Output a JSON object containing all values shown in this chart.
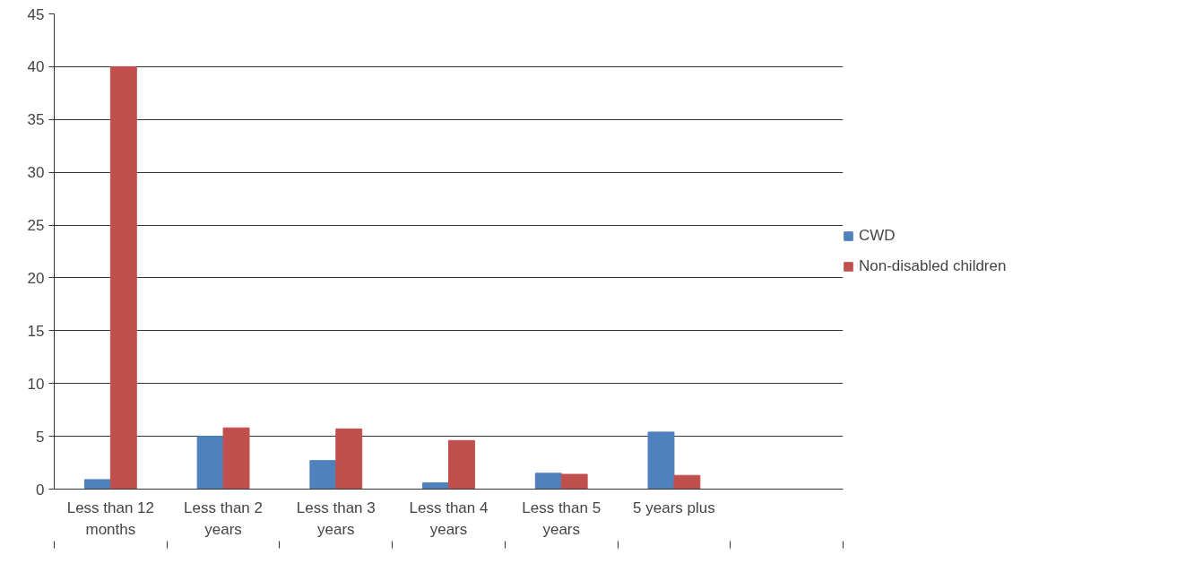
{
  "chart_data": {
    "type": "bar",
    "categories": [
      "Less than 12 months",
      "Less than 2 years",
      "Less than 3 years",
      "Less than 4 years",
      "Less than 5 years",
      "5 years plus",
      null
    ],
    "series": [
      {
        "name": "CWD",
        "color": "#4f81bd",
        "values": [
          0.9,
          5,
          2.7,
          0.6,
          1.5,
          5.4,
          null
        ]
      },
      {
        "name": "Non-disabled children",
        "color": "#c0504d",
        "values": [
          40,
          5.8,
          5.7,
          4.6,
          1.4,
          1.3,
          null
        ]
      }
    ],
    "ylim": [
      0,
      45
    ],
    "yticks": [
      0,
      5,
      10,
      15,
      20,
      25,
      30,
      35,
      40,
      45
    ],
    "grid": "y",
    "legend": "right"
  }
}
